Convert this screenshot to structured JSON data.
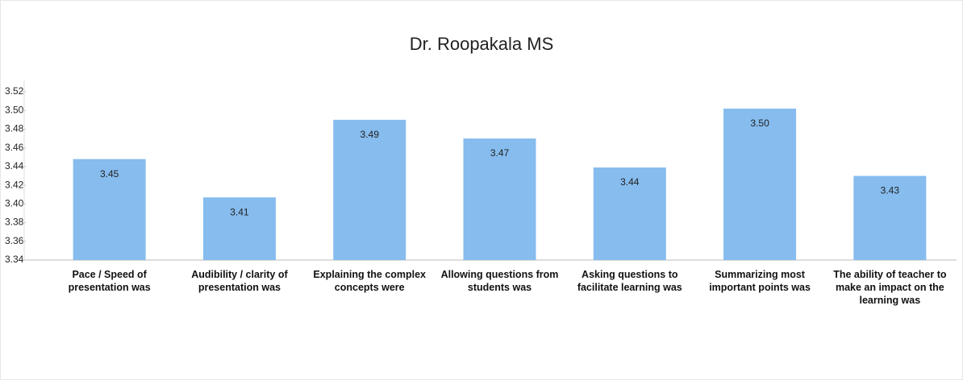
{
  "chart_data": {
    "type": "bar",
    "title": "Dr. Roopakala MS",
    "categories": [
      "Pace / Speed of presentation was",
      "Audibility / clarity of presentation was",
      "Explaining the complex concepts were",
      "Allowing questions from students was",
      "Asking questions to facilitate learning was",
      "Summarizing most important points was",
      "The ability of teacher to make an impact on the learning was"
    ],
    "values": [
      3.448,
      3.407,
      3.49,
      3.47,
      3.439,
      3.502,
      3.43
    ],
    "value_labels": [
      "3.45",
      "3.41",
      "3.49",
      "3.47",
      "3.44",
      "3.50",
      "3.43"
    ],
    "color": "#86bcee",
    "ylim": [
      3.34,
      3.52
    ],
    "yticks": [
      3.34,
      3.36,
      3.38,
      {
        "value": 3.4,
        "label": "3.40"
      },
      3.42,
      3.44,
      3.46,
      3.48,
      {
        "value": 3.5,
        "label": "3.50"
      },
      3.52
    ],
    "grid": false
  }
}
